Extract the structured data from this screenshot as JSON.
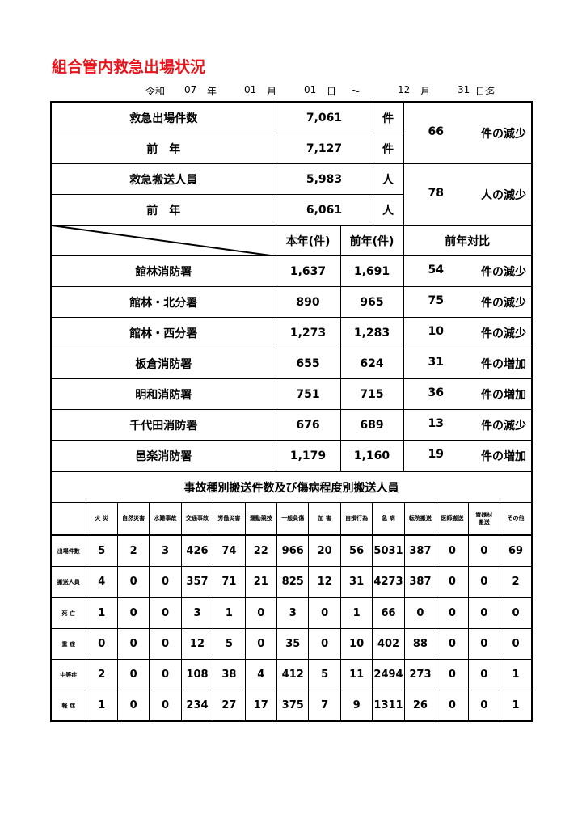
{
  "title": "組合管内救急出場状況",
  "period": {
    "era": "令和",
    "year": "07",
    "year_unit": "年",
    "from_month": "01",
    "month_unit": "月",
    "from_day": "01",
    "day_unit": "日",
    "tilde": "～",
    "to_month": "12",
    "to_month_unit": "月",
    "to_day": "31",
    "to_day_unit": "日迄"
  },
  "summary": [
    {
      "label": "救急出場件数",
      "value": "7,061",
      "unit": "件"
    },
    {
      "label": "前　年",
      "value": "7,127",
      "unit": "件"
    },
    {
      "label": "救急搬送人員",
      "value": "5,983",
      "unit": "人"
    },
    {
      "label": "前　年",
      "value": "6,061",
      "unit": "人"
    }
  ],
  "summary_diff": [
    {
      "value": "66",
      "text": "件の減少"
    },
    {
      "value": "78",
      "text": "人の減少"
    }
  ],
  "stations_header": {
    "current": "本年(件)",
    "previous": "前年(件)",
    "compare": "前年対比"
  },
  "stations": [
    {
      "name": "館林消防署",
      "current": "1,637",
      "previous": "1,691",
      "diff": "54",
      "text": "件の減少"
    },
    {
      "name": "館林・北分署",
      "current": "890",
      "previous": "965",
      "diff": "75",
      "text": "件の減少"
    },
    {
      "name": "館林・西分署",
      "current": "1,273",
      "previous": "1,283",
      "diff": "10",
      "text": "件の減少"
    },
    {
      "name": "板倉消防署",
      "current": "655",
      "previous": "624",
      "diff": "31",
      "text": "件の増加"
    },
    {
      "name": "明和消防署",
      "current": "751",
      "previous": "715",
      "diff": "36",
      "text": "件の増加"
    },
    {
      "name": "千代田消防署",
      "current": "676",
      "previous": "689",
      "diff": "13",
      "text": "件の減少"
    },
    {
      "name": "邑楽消防署",
      "current": "1,179",
      "previous": "1,160",
      "diff": "19",
      "text": "件の増加"
    }
  ],
  "breakdown": {
    "title": "事故種別搬送件数及び傷病程度別搬送人員",
    "columns": [
      "火 災",
      "自然災害",
      "水難事故",
      "交通事故",
      "労働災害",
      "運動競技",
      "一般負傷",
      "加 害",
      "自損行為",
      "急 病",
      "転院搬送",
      "医師搬送",
      "資器材搬送",
      "その他"
    ],
    "rows": [
      {
        "label": "出場件数",
        "values": [
          "5",
          "2",
          "3",
          "426",
          "74",
          "22",
          "966",
          "20",
          "56",
          "5031",
          "387",
          "0",
          "0",
          "69"
        ]
      },
      {
        "label": "搬送人員",
        "values": [
          "4",
          "0",
          "0",
          "357",
          "71",
          "21",
          "825",
          "12",
          "31",
          "4273",
          "387",
          "0",
          "0",
          "2"
        ]
      },
      {
        "label": "死 亡",
        "values": [
          "1",
          "0",
          "0",
          "3",
          "1",
          "0",
          "3",
          "0",
          "1",
          "66",
          "0",
          "0",
          "0",
          "0"
        ]
      },
      {
        "label": "重 症",
        "values": [
          "0",
          "0",
          "0",
          "12",
          "5",
          "0",
          "35",
          "0",
          "10",
          "402",
          "88",
          "0",
          "0",
          "0"
        ]
      },
      {
        "label": "中等症",
        "values": [
          "2",
          "0",
          "0",
          "108",
          "38",
          "4",
          "412",
          "5",
          "11",
          "2494",
          "273",
          "0",
          "0",
          "1"
        ]
      },
      {
        "label": "軽 症",
        "values": [
          "1",
          "0",
          "0",
          "234",
          "27",
          "17",
          "375",
          "7",
          "9",
          "1311",
          "26",
          "0",
          "0",
          "1"
        ]
      }
    ]
  },
  "colors": {
    "title": "#e8141b"
  }
}
